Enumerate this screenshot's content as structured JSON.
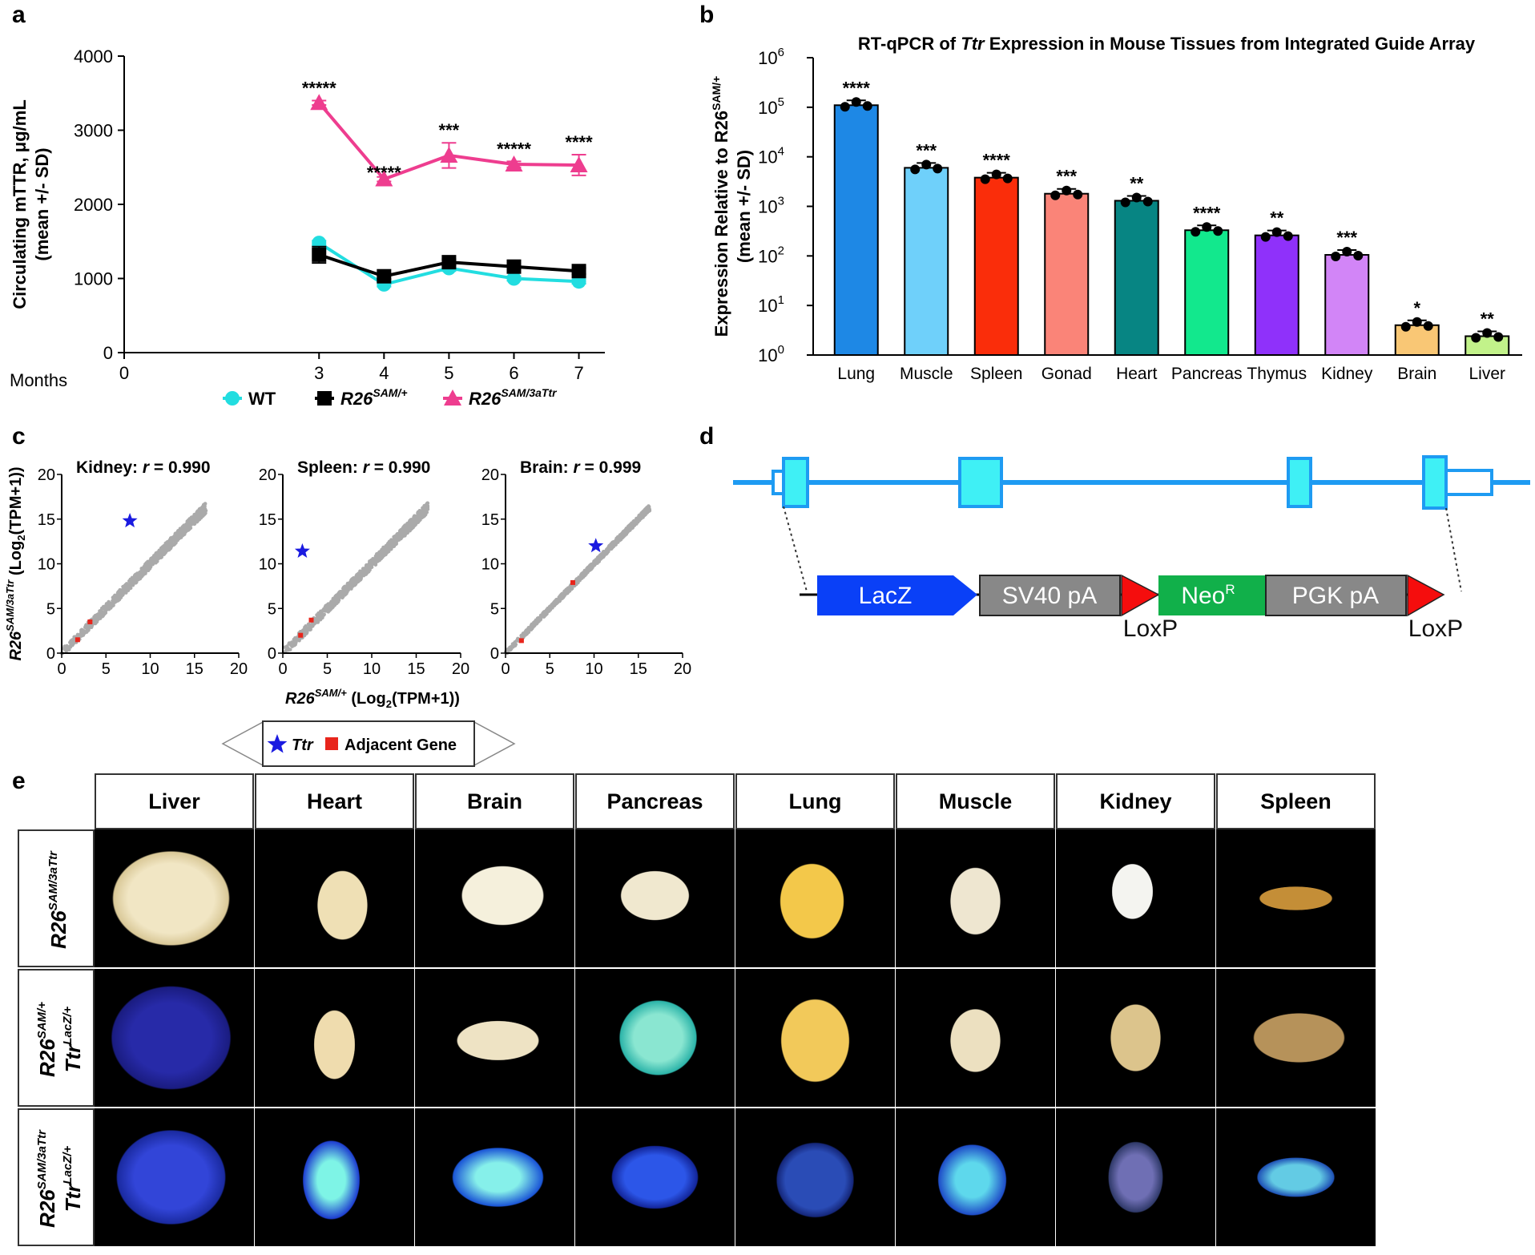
{
  "panels": {
    "a": "a",
    "b": "b",
    "c": "c",
    "d": "d",
    "e": "e"
  },
  "panel_a": {
    "chart_data": {
      "type": "line",
      "ylabel_line1": "Circulating mTTR, μg/mL",
      "ylabel_line2": "(mean +/- SD)",
      "xlabel": "Months",
      "xlim": [
        0,
        7.4
      ],
      "ylim": [
        0,
        4000
      ],
      "x_ticks": [
        0,
        3,
        4,
        5,
        6,
        7
      ],
      "y_ticks": [
        0,
        1000,
        2000,
        3000,
        4000
      ],
      "x": [
        3,
        4,
        5,
        6,
        7
      ],
      "series": [
        {
          "name": "WT",
          "color": "#22dde0",
          "marker": "circle",
          "values": [
            1480,
            920,
            1140,
            1000,
            960
          ],
          "err": [
            30,
            30,
            40,
            30,
            30
          ]
        },
        {
          "name": "R26",
          "sup": "SAM/+",
          "color": "#000000",
          "marker": "square",
          "values": [
            1320,
            1030,
            1220,
            1160,
            1100
          ],
          "err": [
            110,
            40,
            40,
            40,
            40
          ]
        },
        {
          "name": "R26",
          "sup": "SAM/3aTtr",
          "color": "#ee3d8f",
          "marker": "triangle",
          "values": [
            3370,
            2340,
            2660,
            2540,
            2530
          ],
          "err": [
            30,
            30,
            170,
            40,
            140
          ]
        }
      ],
      "annotations": [
        "*****",
        "*****",
        "***",
        "*****",
        "****"
      ]
    }
  },
  "panel_b": {
    "chart_data": {
      "type": "bar",
      "title_pre": "RT-qPCR of ",
      "title_gene": "Ttr",
      "title_post": " Expression in Mouse Tissues from Integrated Guide Array",
      "ylabel_line1_pre": "Expression Relative to R26",
      "ylabel_line1_sup": "SAM/+",
      "ylabel_line2": "(mean +/- SD)",
      "yscale": "log",
      "ylim": [
        1,
        1000000
      ],
      "y_ticks": [
        {
          "base": "10",
          "exp": "0"
        },
        {
          "base": "10",
          "exp": "1"
        },
        {
          "base": "10",
          "exp": "2"
        },
        {
          "base": "10",
          "exp": "3"
        },
        {
          "base": "10",
          "exp": "4"
        },
        {
          "base": "10",
          "exp": "5"
        },
        {
          "base": "10",
          "exp": "6"
        }
      ],
      "categories": [
        "Lung",
        "Muscle",
        "Spleen",
        "Gonad",
        "Heart",
        "Pancreas",
        "Thymus",
        "Kidney",
        "Brain",
        "Liver"
      ],
      "values": [
        110000,
        6000,
        3800,
        1800,
        1300,
        330,
        260,
        105,
        4,
        2.4
      ],
      "colors": [
        "#1e88e5",
        "#6fd0fa",
        "#fa2d0a",
        "#fa8478",
        "#078583",
        "#12e88d",
        "#8f31fa",
        "#d285f7",
        "#f9c775",
        "#c2f28a"
      ],
      "significance": [
        "****",
        "***",
        "****",
        "***",
        "**",
        "****",
        "**",
        "***",
        "*",
        "**"
      ]
    }
  },
  "panel_c": {
    "chart_data": [
      {
        "type": "scatter",
        "tissue": "Kidney:",
        "r_label": "r",
        "r_value": "= 0.990",
        "ttr": [
          7.7,
          14.8
        ],
        "adjacent": [
          [
            1.8,
            1.5
          ],
          [
            3.2,
            3.5
          ]
        ],
        "xlim": [
          0,
          20
        ],
        "ylim": [
          0,
          20
        ]
      },
      {
        "type": "scatter",
        "tissue": "Spleen:",
        "r_label": "r",
        "r_value": "= 0.990",
        "ttr": [
          2.2,
          11.4
        ],
        "adjacent": [
          [
            2.0,
            2.0
          ],
          [
            3.2,
            3.7
          ]
        ],
        "xlim": [
          0,
          20
        ],
        "ylim": [
          0,
          20
        ]
      },
      {
        "type": "scatter",
        "tissue": "Brain:",
        "r_label": "r",
        "r_value": "= 0.999",
        "ttr": [
          10.2,
          12.0
        ],
        "adjacent": [
          [
            1.8,
            1.4
          ],
          [
            7.6,
            7.9
          ]
        ],
        "xlim": [
          0,
          20
        ],
        "ylim": [
          0,
          20
        ]
      }
    ],
    "ticks": [
      "0",
      "5",
      "10",
      "15",
      "20"
    ],
    "ylabel_pre": "R26",
    "ylabel_sup": "SAM/3aTtr",
    "ylabel_post": " (Log",
    "ylabel_sub": "2",
    "ylabel_end": "(TPM+1))",
    "xlabel_pre": "R26",
    "xlabel_sup": "SAM/+",
    "xlabel_post": " (Log",
    "xlabel_sub": "2",
    "xlabel_end": "(TPM+1))",
    "legend": {
      "ttr": "Ttr",
      "adjacent": "Adjacent Gene"
    }
  },
  "panel_d": {
    "lacz": "LacZ",
    "sv40": "SV40 pA",
    "neo": "Neo",
    "neo_sup": "R",
    "pgk": "PGK pA",
    "loxp1": "LoxP",
    "loxp2": "LoxP"
  },
  "panel_e": {
    "columns": [
      "Liver",
      "Heart",
      "Brain",
      "Pancreas",
      "Lung",
      "Muscle",
      "Kidney",
      "Spleen"
    ],
    "rows": [
      {
        "line1": "R26",
        "line1_sup": "SAM/3aTtr",
        "line2": "",
        "line2_sup": ""
      },
      {
        "line1": "R26",
        "line1_sup": "SAM/+",
        "line2": "Ttr",
        "line2_sup": "LacZ/+"
      },
      {
        "line1": "R26",
        "line1_sup": "SAM/3aTtr",
        "line2": "Ttr",
        "line2_sup": "LacZ/+"
      }
    ]
  }
}
